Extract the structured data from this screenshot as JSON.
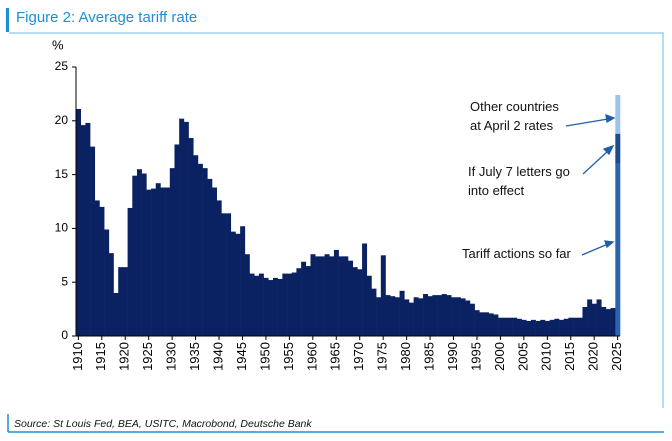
{
  "chart_data": {
    "type": "bar",
    "title": "Figure 2: Average tariff rate",
    "y_label": "%",
    "source": "Source: St Louis Fed, BEA, USITC, Macrobond, Deutsche Bank",
    "x": [
      1910,
      1911,
      1912,
      1913,
      1914,
      1915,
      1916,
      1917,
      1918,
      1919,
      1920,
      1921,
      1922,
      1923,
      1924,
      1925,
      1926,
      1927,
      1928,
      1929,
      1930,
      1931,
      1932,
      1933,
      1934,
      1935,
      1936,
      1937,
      1938,
      1939,
      1940,
      1941,
      1942,
      1943,
      1944,
      1945,
      1946,
      1947,
      1948,
      1949,
      1950,
      1951,
      1952,
      1953,
      1954,
      1955,
      1956,
      1957,
      1958,
      1959,
      1960,
      1961,
      1962,
      1963,
      1964,
      1965,
      1966,
      1967,
      1968,
      1969,
      1970,
      1971,
      1972,
      1973,
      1974,
      1975,
      1976,
      1977,
      1978,
      1979,
      1980,
      1981,
      1982,
      1983,
      1984,
      1985,
      1986,
      1987,
      1988,
      1989,
      1990,
      1991,
      1992,
      1993,
      1994,
      1995,
      1996,
      1997,
      1998,
      1999,
      2000,
      2001,
      2002,
      2003,
      2004,
      2005,
      2006,
      2007,
      2008,
      2009,
      2010,
      2011,
      2012,
      2013,
      2014,
      2015,
      2016,
      2017,
      2018,
      2019,
      2020,
      2021,
      2022,
      2023,
      2024,
      2025
    ],
    "xlim": [
      1909.5,
      2025.5
    ],
    "xticks": [
      1910,
      1915,
      1920,
      1925,
      1930,
      1935,
      1940,
      1945,
      1950,
      1955,
      1960,
      1965,
      1970,
      1975,
      1980,
      1985,
      1990,
      1995,
      2000,
      2005,
      2010,
      2015,
      2020,
      2025
    ],
    "ylim": [
      0,
      25
    ],
    "yticks": [
      0,
      5,
      10,
      15,
      20,
      25
    ],
    "stacked": true,
    "series": [
      {
        "color": "#0b2262",
        "values": [
          21.1,
          19.6,
          19.8,
          17.6,
          12.6,
          12.0,
          9.9,
          7.7,
          4.0,
          6.4,
          6.4,
          11.9,
          14.9,
          15.5,
          15.1,
          13.6,
          13.7,
          14.2,
          13.8,
          13.8,
          15.6,
          17.8,
          20.2,
          19.9,
          18.4,
          16.8,
          16.0,
          15.6,
          14.6,
          13.8,
          12.6,
          11.4,
          11.4,
          9.7,
          9.5,
          10.2,
          7.6,
          5.8,
          5.6,
          5.8,
          5.4,
          5.2,
          5.4,
          5.3,
          5.8,
          5.8,
          5.9,
          6.3,
          6.9,
          6.5,
          7.6,
          7.4,
          7.4,
          7.6,
          7.4,
          8.0,
          7.4,
          7.4,
          7.0,
          6.4,
          6.2,
          8.6,
          5.6,
          4.4,
          3.6,
          7.5,
          3.8,
          3.7,
          3.6,
          4.2,
          3.4,
          3.1,
          3.6,
          3.5,
          3.9,
          3.7,
          3.8,
          3.8,
          3.9,
          3.8,
          3.6,
          3.6,
          3.5,
          3.3,
          3.0,
          2.4,
          2.2,
          2.2,
          2.1,
          2.0,
          1.7,
          1.7,
          1.7,
          1.7,
          1.6,
          1.5,
          1.4,
          1.5,
          1.4,
          1.5,
          1.4,
          1.5,
          1.6,
          1.5,
          1.6,
          1.7,
          1.7,
          1.7,
          2.7,
          3.4,
          3.0,
          3.4,
          2.7,
          2.5,
          2.6,
          null
        ]
      },
      {
        "name": "Tariff actions so far",
        "color": "#2a64ae",
        "values": [
          null,
          null,
          null,
          null,
          null,
          null,
          null,
          null,
          null,
          null,
          null,
          null,
          null,
          null,
          null,
          null,
          null,
          null,
          null,
          null,
          null,
          null,
          null,
          null,
          null,
          null,
          null,
          null,
          null,
          null,
          null,
          null,
          null,
          null,
          null,
          null,
          null,
          null,
          null,
          null,
          null,
          null,
          null,
          null,
          null,
          null,
          null,
          null,
          null,
          null,
          null,
          null,
          null,
          null,
          null,
          null,
          null,
          null,
          null,
          null,
          null,
          null,
          null,
          null,
          null,
          null,
          null,
          null,
          null,
          null,
          null,
          null,
          null,
          null,
          null,
          null,
          null,
          null,
          null,
          null,
          null,
          null,
          null,
          null,
          null,
          null,
          null,
          null,
          null,
          null,
          null,
          null,
          null,
          null,
          null,
          null,
          null,
          null,
          null,
          null,
          null,
          null,
          null,
          null,
          null,
          null,
          null,
          null,
          null,
          null,
          null,
          null,
          null,
          null,
          null,
          16.0
        ]
      },
      {
        "name": "If July 7 letters go into effect",
        "color": "#1a4c92",
        "values": [
          null,
          null,
          null,
          null,
          null,
          null,
          null,
          null,
          null,
          null,
          null,
          null,
          null,
          null,
          null,
          null,
          null,
          null,
          null,
          null,
          null,
          null,
          null,
          null,
          null,
          null,
          null,
          null,
          null,
          null,
          null,
          null,
          null,
          null,
          null,
          null,
          null,
          null,
          null,
          null,
          null,
          null,
          null,
          null,
          null,
          null,
          null,
          null,
          null,
          null,
          null,
          null,
          null,
          null,
          null,
          null,
          null,
          null,
          null,
          null,
          null,
          null,
          null,
          null,
          null,
          null,
          null,
          null,
          null,
          null,
          null,
          null,
          null,
          null,
          null,
          null,
          null,
          null,
          null,
          null,
          null,
          null,
          null,
          null,
          null,
          null,
          null,
          null,
          null,
          null,
          null,
          null,
          null,
          null,
          null,
          null,
          null,
          null,
          null,
          null,
          null,
          null,
          null,
          null,
          null,
          null,
          null,
          null,
          null,
          null,
          null,
          null,
          null,
          null,
          null,
          2.8
        ]
      },
      {
        "name": "Other countries at April 2 rates",
        "color": "#9cc4e8",
        "values": [
          null,
          null,
          null,
          null,
          null,
          null,
          null,
          null,
          null,
          null,
          null,
          null,
          null,
          null,
          null,
          null,
          null,
          null,
          null,
          null,
          null,
          null,
          null,
          null,
          null,
          null,
          null,
          null,
          null,
          null,
          null,
          null,
          null,
          null,
          null,
          null,
          null,
          null,
          null,
          null,
          null,
          null,
          null,
          null,
          null,
          null,
          null,
          null,
          null,
          null,
          null,
          null,
          null,
          null,
          null,
          null,
          null,
          null,
          null,
          null,
          null,
          null,
          null,
          null,
          null,
          null,
          null,
          null,
          null,
          null,
          null,
          null,
          null,
          null,
          null,
          null,
          null,
          null,
          null,
          null,
          null,
          null,
          null,
          null,
          null,
          null,
          null,
          null,
          null,
          null,
          null,
          null,
          null,
          null,
          null,
          null,
          null,
          null,
          null,
          null,
          null,
          null,
          null,
          null,
          null,
          null,
          null,
          null,
          null,
          null,
          null,
          null,
          null,
          null,
          null,
          3.6
        ]
      }
    ]
  }
}
